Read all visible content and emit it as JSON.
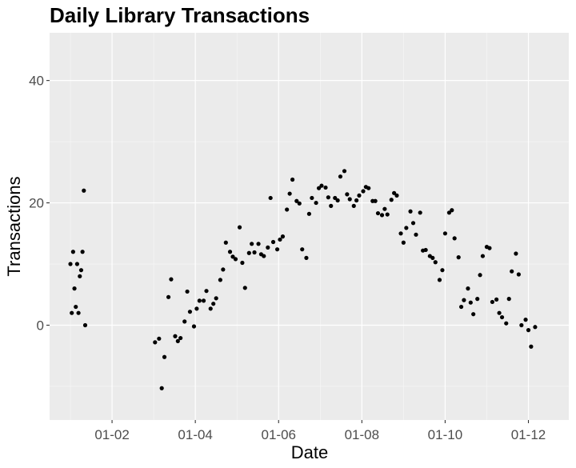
{
  "chart_data": {
    "type": "scatter",
    "title": "Daily Library Transactions",
    "xlabel": "Date",
    "ylabel": "Transactions",
    "x_tick_labels": [
      "01-02",
      "01-04",
      "01-06",
      "01-08",
      "01-10",
      "01-12"
    ],
    "y_tick_labels": [
      "0",
      "20",
      "40"
    ],
    "y_ticks": [
      0,
      20,
      40
    ],
    "ylim": [
      -15.5,
      47.8
    ],
    "xlim_month": [
      0.5,
      12.97
    ],
    "grid": true,
    "panel_background": "#ebebeb",
    "point_color": "#000000",
    "points": [
      {
        "x": "01-01",
        "y": 10.0
      },
      {
        "x": "01-02",
        "y": 2.0
      },
      {
        "x": "01-03",
        "y": 12.0
      },
      {
        "x": "01-04",
        "y": 6.0
      },
      {
        "x": "01-05",
        "y": 3.0
      },
      {
        "x": "01-06",
        "y": 10.0
      },
      {
        "x": "01-07",
        "y": 2.0
      },
      {
        "x": "01-08",
        "y": 8.0
      },
      {
        "x": "01-09",
        "y": 9.0
      },
      {
        "x": "01-10",
        "y": 12.0
      },
      {
        "x": "01-11",
        "y": 22.0
      },
      {
        "x": "01-12",
        "y": 0.0
      },
      {
        "x": "03-02",
        "y": -2.8
      },
      {
        "x": "03-05",
        "y": -2.2
      },
      {
        "x": "03-07",
        "y": -10.3
      },
      {
        "x": "03-09",
        "y": -5.2
      },
      {
        "x": "03-12",
        "y": 4.6
      },
      {
        "x": "03-14",
        "y": 7.5
      },
      {
        "x": "03-17",
        "y": -1.8
      },
      {
        "x": "03-19",
        "y": -2.6
      },
      {
        "x": "03-21",
        "y": -2.1
      },
      {
        "x": "03-24",
        "y": 0.6
      },
      {
        "x": "03-26",
        "y": 5.5
      },
      {
        "x": "03-28",
        "y": 2.2
      },
      {
        "x": "03-31",
        "y": -0.2
      },
      {
        "x": "04-02",
        "y": 2.7
      },
      {
        "x": "04-04",
        "y": 4.0
      },
      {
        "x": "04-07",
        "y": 4.0
      },
      {
        "x": "04-09",
        "y": 5.6
      },
      {
        "x": "04-12",
        "y": 2.7
      },
      {
        "x": "04-14",
        "y": 3.5
      },
      {
        "x": "04-16",
        "y": 4.4
      },
      {
        "x": "04-19",
        "y": 7.4
      },
      {
        "x": "04-21",
        "y": 9.1
      },
      {
        "x": "04-23",
        "y": 13.5
      },
      {
        "x": "04-26",
        "y": 12.0
      },
      {
        "x": "04-28",
        "y": 11.2
      },
      {
        "x": "04-30",
        "y": 10.8
      },
      {
        "x": "05-03",
        "y": 16.0
      },
      {
        "x": "05-05",
        "y": 10.2
      },
      {
        "x": "05-07",
        "y": 6.1
      },
      {
        "x": "05-10",
        "y": 11.8
      },
      {
        "x": "05-12",
        "y": 13.3
      },
      {
        "x": "05-14",
        "y": 11.9
      },
      {
        "x": "05-17",
        "y": 13.3
      },
      {
        "x": "05-19",
        "y": 11.6
      },
      {
        "x": "05-21",
        "y": 11.3
      },
      {
        "x": "05-24",
        "y": 12.7
      },
      {
        "x": "05-26",
        "y": 20.8
      },
      {
        "x": "05-28",
        "y": 13.6
      },
      {
        "x": "05-31",
        "y": 12.4
      },
      {
        "x": "06-02",
        "y": 14.0
      },
      {
        "x": "06-04",
        "y": 14.5
      },
      {
        "x": "06-07",
        "y": 18.9
      },
      {
        "x": "06-09",
        "y": 21.5
      },
      {
        "x": "06-11",
        "y": 23.8
      },
      {
        "x": "06-14",
        "y": 20.3
      },
      {
        "x": "06-16",
        "y": 19.9
      },
      {
        "x": "06-18",
        "y": 12.4
      },
      {
        "x": "06-21",
        "y": 11.0
      },
      {
        "x": "06-23",
        "y": 18.2
      },
      {
        "x": "06-25",
        "y": 20.8
      },
      {
        "x": "06-28",
        "y": 20.0
      },
      {
        "x": "06-30",
        "y": 22.4
      },
      {
        "x": "07-02",
        "y": 22.8
      },
      {
        "x": "07-05",
        "y": 22.5
      },
      {
        "x": "07-07",
        "y": 20.9
      },
      {
        "x": "07-09",
        "y": 19.5
      },
      {
        "x": "07-12",
        "y": 20.8
      },
      {
        "x": "07-14",
        "y": 20.4
      },
      {
        "x": "07-16",
        "y": 24.3
      },
      {
        "x": "07-19",
        "y": 25.2
      },
      {
        "x": "07-21",
        "y": 21.4
      },
      {
        "x": "07-23",
        "y": 20.6
      },
      {
        "x": "07-26",
        "y": 19.5
      },
      {
        "x": "07-28",
        "y": 20.4
      },
      {
        "x": "07-30",
        "y": 21.2
      },
      {
        "x": "08-02",
        "y": 21.9
      },
      {
        "x": "08-04",
        "y": 22.6
      },
      {
        "x": "08-06",
        "y": 22.4
      },
      {
        "x": "08-09",
        "y": 20.3
      },
      {
        "x": "08-11",
        "y": 20.3
      },
      {
        "x": "08-13",
        "y": 18.3
      },
      {
        "x": "08-16",
        "y": 18.0
      },
      {
        "x": "08-18",
        "y": 19.0
      },
      {
        "x": "08-20",
        "y": 18.1
      },
      {
        "x": "08-23",
        "y": 20.5
      },
      {
        "x": "08-25",
        "y": 21.6
      },
      {
        "x": "08-27",
        "y": 21.2
      },
      {
        "x": "08-30",
        "y": 15.0
      },
      {
        "x": "09-01",
        "y": 13.5
      },
      {
        "x": "09-03",
        "y": 15.9
      },
      {
        "x": "09-06",
        "y": 18.6
      },
      {
        "x": "09-08",
        "y": 16.7
      },
      {
        "x": "09-10",
        "y": 14.8
      },
      {
        "x": "09-13",
        "y": 18.4
      },
      {
        "x": "09-15",
        "y": 12.2
      },
      {
        "x": "09-17",
        "y": 12.3
      },
      {
        "x": "09-20",
        "y": 11.3
      },
      {
        "x": "09-22",
        "y": 11.0
      },
      {
        "x": "09-24",
        "y": 10.3
      },
      {
        "x": "09-27",
        "y": 7.4
      },
      {
        "x": "09-29",
        "y": 9.0
      },
      {
        "x": "10-01",
        "y": 15.0
      },
      {
        "x": "10-04",
        "y": 18.4
      },
      {
        "x": "10-06",
        "y": 18.8
      },
      {
        "x": "10-08",
        "y": 14.2
      },
      {
        "x": "10-11",
        "y": 11.1
      },
      {
        "x": "10-13",
        "y": 3.0
      },
      {
        "x": "10-15",
        "y": 4.1
      },
      {
        "x": "10-18",
        "y": 6.0
      },
      {
        "x": "10-20",
        "y": 3.7
      },
      {
        "x": "10-22",
        "y": 1.8
      },
      {
        "x": "10-25",
        "y": 4.3
      },
      {
        "x": "10-27",
        "y": 8.2
      },
      {
        "x": "10-29",
        "y": 11.3
      },
      {
        "x": "11-01",
        "y": 12.8
      },
      {
        "x": "11-03",
        "y": 12.6
      },
      {
        "x": "11-05",
        "y": 3.8
      },
      {
        "x": "11-08",
        "y": 4.2
      },
      {
        "x": "11-10",
        "y": 2.0
      },
      {
        "x": "11-12",
        "y": 1.3
      },
      {
        "x": "11-15",
        "y": 0.3
      },
      {
        "x": "11-17",
        "y": 4.3
      },
      {
        "x": "11-19",
        "y": 8.8
      },
      {
        "x": "11-22",
        "y": 11.7
      },
      {
        "x": "11-24",
        "y": 8.3
      },
      {
        "x": "11-26",
        "y": 0.0
      },
      {
        "x": "11-29",
        "y": 0.9
      },
      {
        "x": "12-01",
        "y": -0.8
      },
      {
        "x": "12-03",
        "y": -3.5
      },
      {
        "x": "12-06",
        "y": -0.3
      }
    ]
  }
}
